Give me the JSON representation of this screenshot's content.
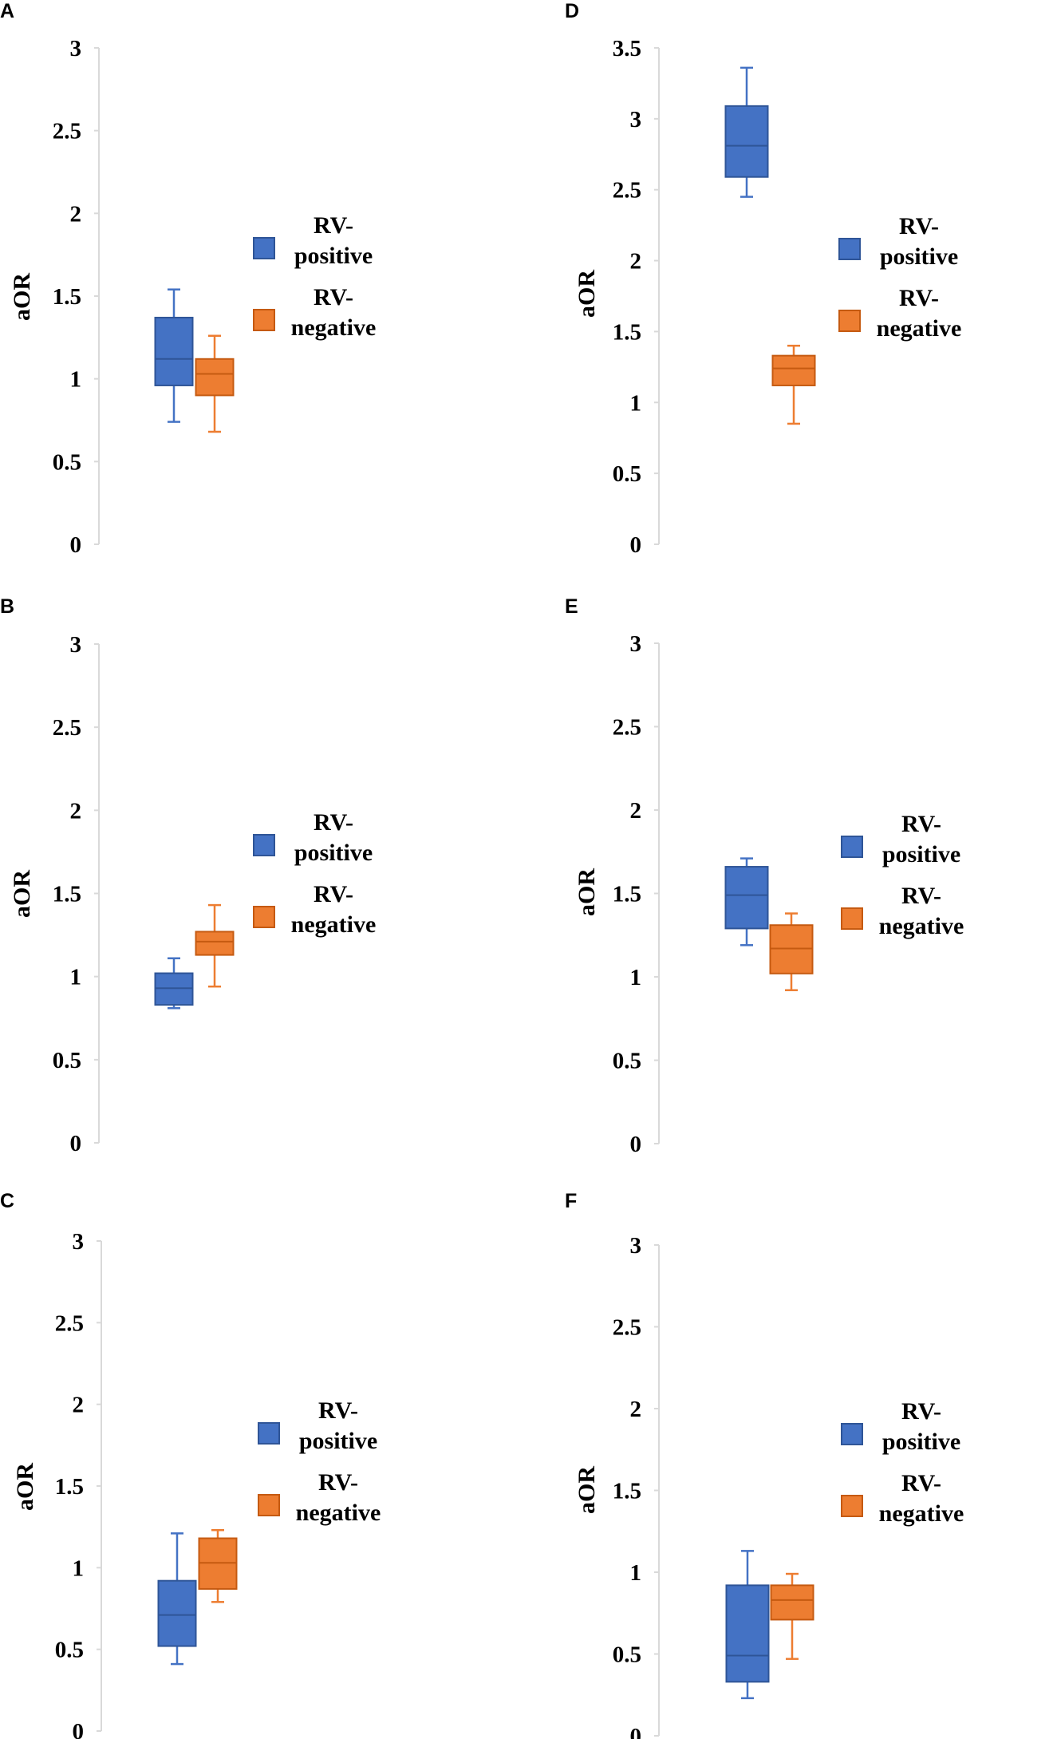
{
  "colors": {
    "positive": "#4472c4",
    "positive_edge": "#2f5597",
    "negative": "#ed7d31",
    "negative_edge": "#c55a11",
    "axis": "#d9d9d9"
  },
  "chart_data": [
    {
      "type": "boxplot",
      "panel": "A",
      "ylabel": "aOR",
      "ylim": [
        0,
        3
      ],
      "yticks": [
        "0",
        "0.5",
        "1",
        "1.5",
        "2",
        "2.5",
        "3"
      ],
      "legend": [
        "RV-positive",
        "RV-negative"
      ],
      "series": [
        {
          "name": "RV-positive",
          "min": 0.74,
          "q1": 0.96,
          "median": 1.12,
          "q3": 1.37,
          "max": 1.54
        },
        {
          "name": "RV-negative",
          "min": 0.68,
          "q1": 0.9,
          "median": 1.03,
          "q3": 1.12,
          "max": 1.26
        }
      ]
    },
    {
      "type": "boxplot",
      "panel": "B",
      "ylabel": "aOR",
      "ylim": [
        0,
        3
      ],
      "yticks": [
        "0",
        "0.5",
        "1",
        "1.5",
        "2",
        "2.5",
        "3"
      ],
      "legend": [
        "RV-positive",
        "RV-negative"
      ],
      "series": [
        {
          "name": "RV-positive",
          "min": 0.81,
          "q1": 0.83,
          "median": 0.93,
          "q3": 1.02,
          "max": 1.11
        },
        {
          "name": "RV-negative",
          "min": 0.94,
          "q1": 1.13,
          "median": 1.21,
          "q3": 1.27,
          "max": 1.43
        }
      ]
    },
    {
      "type": "boxplot",
      "panel": "C",
      "ylabel": "aOR",
      "ylim": [
        0,
        3
      ],
      "yticks": [
        "0",
        "0.5",
        "1",
        "1.5",
        "2",
        "2.5",
        "3"
      ],
      "legend": [
        "RV-positive",
        "RV-negative"
      ],
      "series": [
        {
          "name": "RV-positive",
          "min": 0.41,
          "q1": 0.52,
          "median": 0.71,
          "q3": 0.92,
          "max": 1.21
        },
        {
          "name": "RV-negative",
          "min": 0.79,
          "q1": 0.87,
          "median": 1.03,
          "q3": 1.18,
          "max": 1.23
        }
      ]
    },
    {
      "type": "boxplot",
      "panel": "D",
      "ylabel": "aOR",
      "ylim": [
        0,
        3.5
      ],
      "yticks": [
        "0",
        "0.5",
        "1",
        "1.5",
        "2",
        "2.5",
        "3",
        "3.5"
      ],
      "legend": [
        "RV-positive",
        "RV-negative"
      ],
      "series": [
        {
          "name": "RV-positive",
          "min": 2.45,
          "q1": 2.59,
          "median": 2.81,
          "q3": 3.09,
          "max": 3.36
        },
        {
          "name": "RV-negative",
          "min": 0.85,
          "q1": 1.12,
          "median": 1.24,
          "q3": 1.33,
          "max": 1.4
        }
      ]
    },
    {
      "type": "boxplot",
      "panel": "E",
      "ylabel": "aOR",
      "ylim": [
        0,
        3
      ],
      "yticks": [
        "0",
        "0.5",
        "1",
        "1.5",
        "2",
        "2.5",
        "3"
      ],
      "legend": [
        "RV-positive",
        "RV-negative"
      ],
      "series": [
        {
          "name": "RV-positive",
          "min": 1.19,
          "q1": 1.29,
          "median": 1.49,
          "q3": 1.66,
          "max": 1.71
        },
        {
          "name": "RV-negative",
          "min": 0.92,
          "q1": 1.02,
          "median": 1.17,
          "q3": 1.31,
          "max": 1.38
        }
      ]
    },
    {
      "type": "boxplot",
      "panel": "F",
      "ylabel": "aOR",
      "ylim": [
        0,
        3
      ],
      "yticks": [
        "0",
        "0.5",
        "1",
        "1.5",
        "2",
        "2.5",
        "3"
      ],
      "legend": [
        "RV-positive",
        "RV-negative"
      ],
      "series": [
        {
          "name": "RV-positive",
          "min": 0.23,
          "q1": 0.33,
          "median": 0.49,
          "q3": 0.92,
          "max": 1.13
        },
        {
          "name": "RV-negative",
          "min": 0.47,
          "q1": 0.71,
          "median": 0.83,
          "q3": 0.92,
          "max": 0.99
        }
      ]
    }
  ]
}
